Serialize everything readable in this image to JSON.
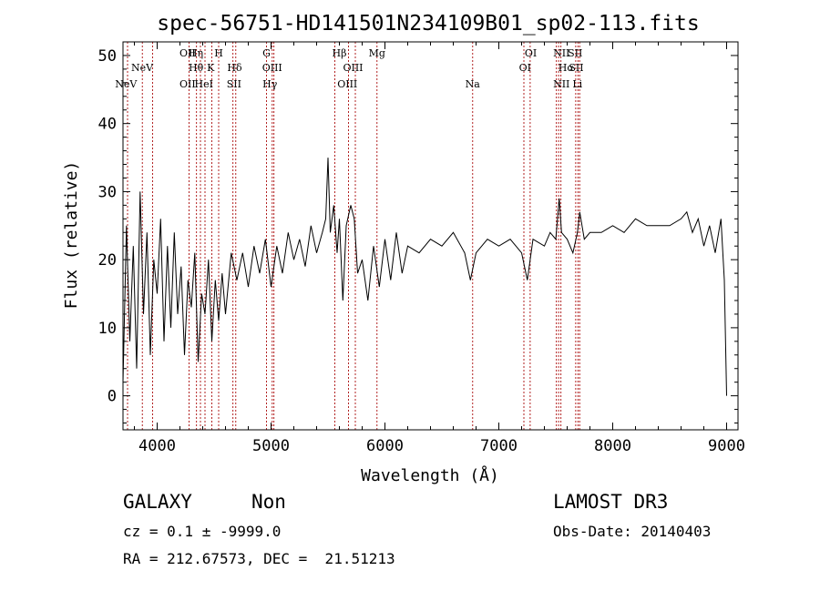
{
  "chart_data": {
    "type": "line",
    "title": "spec-56751-HD141501N234109B01_sp02-113.fits",
    "xlabel": "Wavelength (Å)",
    "ylabel": "Flux (relative)",
    "xlim": [
      3700,
      9100
    ],
    "ylim": [
      -5,
      52
    ],
    "xticks": [
      4000,
      5000,
      6000,
      7000,
      8000,
      9000
    ],
    "yticks": [
      0,
      10,
      20,
      30,
      40,
      50
    ],
    "xtick_labels": [
      "4000",
      "5000",
      "6000",
      "7000",
      "8000",
      "9000"
    ],
    "ytick_labels": [
      "0",
      "10",
      "20",
      "30",
      "40",
      "50"
    ],
    "grid": false,
    "line_color": "#000000",
    "marker_color": "#b22222",
    "series": [
      {
        "name": "flux",
        "x": [
          3700,
          3730,
          3760,
          3790,
          3820,
          3850,
          3880,
          3910,
          3940,
          3970,
          4000,
          4030,
          4060,
          4090,
          4120,
          4150,
          4180,
          4210,
          4240,
          4270,
          4300,
          4330,
          4360,
          4390,
          4420,
          4450,
          4480,
          4510,
          4540,
          4570,
          4600,
          4650,
          4700,
          4750,
          4800,
          4850,
          4900,
          4950,
          5000,
          5050,
          5100,
          5150,
          5200,
          5250,
          5300,
          5350,
          5400,
          5450,
          5480,
          5500,
          5520,
          5550,
          5580,
          5600,
          5630,
          5660,
          5700,
          5730,
          5760,
          5800,
          5850,
          5900,
          5950,
          6000,
          6050,
          6100,
          6150,
          6200,
          6300,
          6400,
          6500,
          6600,
          6700,
          6750,
          6800,
          6900,
          7000,
          7100,
          7200,
          7250,
          7300,
          7400,
          7450,
          7500,
          7530,
          7550,
          7600,
          7650,
          7690,
          7710,
          7750,
          7800,
          7900,
          8000,
          8100,
          8200,
          8300,
          8400,
          8500,
          8600,
          8650,
          8700,
          8750,
          8800,
          8850,
          8900,
          8950,
          8980,
          9000
        ],
        "y": [
          2,
          25,
          8,
          22,
          4,
          30,
          12,
          24,
          6,
          20,
          15,
          26,
          8,
          22,
          10,
          24,
          12,
          19,
          6,
          17,
          13,
          21,
          5,
          15,
          12,
          20,
          8,
          17,
          11,
          18,
          12,
          21,
          17,
          21,
          16,
          22,
          18,
          23,
          16,
          22,
          18,
          24,
          20,
          23,
          19,
          25,
          21,
          24,
          26,
          35,
          24,
          28,
          21,
          26,
          14,
          25,
          28,
          26,
          18,
          20,
          14,
          22,
          16,
          23,
          17,
          24,
          18,
          22,
          21,
          23,
          22,
          24,
          21,
          17,
          21,
          23,
          22,
          23,
          21,
          17,
          23,
          22,
          24,
          23,
          29,
          24,
          23,
          21,
          24,
          27,
          23,
          24,
          24,
          25,
          24,
          26,
          25,
          25,
          25,
          26,
          27,
          24,
          26,
          22,
          25,
          21,
          26,
          17,
          0
        ]
      }
    ],
    "emission_lines": [
      {
        "label": "NeV",
        "x": 3726,
        "row": 2
      },
      {
        "label": "NeV",
        "x": 3868,
        "row": 1
      },
      {
        "label": "OII",
        "x": 4267,
        "row": 0
      },
      {
        "label": "OII",
        "x": 4267,
        "row": 2
      },
      {
        "label": "Hη",
        "x": 4340,
        "row": 0
      },
      {
        "label": "Hθ",
        "x": 4341,
        "row": 1
      },
      {
        "label": "HeI",
        "x": 4410,
        "row": 2
      },
      {
        "label": "H",
        "x": 4540,
        "row": 0
      },
      {
        "label": "K",
        "x": 4470,
        "row": 1
      },
      {
        "label": "Hδ",
        "x": 4680,
        "row": 1
      },
      {
        "label": "SII",
        "x": 4675,
        "row": 2
      },
      {
        "label": "G",
        "x": 4960,
        "row": 0
      },
      {
        "label": "OIII",
        "x": 5010,
        "row": 1
      },
      {
        "label": "Hγ",
        "x": 4990,
        "row": 2
      },
      {
        "label": "Hβ",
        "x": 5600,
        "row": 0
      },
      {
        "label": "OIII",
        "x": 5720,
        "row": 1
      },
      {
        "label": "OIII",
        "x": 5670,
        "row": 2
      },
      {
        "label": "Mg",
        "x": 5930,
        "row": 0
      },
      {
        "label": "Na",
        "x": 6770,
        "row": 2
      },
      {
        "label": "OI",
        "x": 7280,
        "row": 0
      },
      {
        "label": "OI",
        "x": 7230,
        "row": 1
      },
      {
        "label": "NII",
        "x": 7550,
        "row": 0
      },
      {
        "label": "Hα",
        "x": 7590,
        "row": 1
      },
      {
        "label": "NII",
        "x": 7550,
        "row": 2
      },
      {
        "label": "SII",
        "x": 7670,
        "row": 0
      },
      {
        "label": "SII",
        "x": 7680,
        "row": 1
      },
      {
        "label": "Li",
        "x": 7690,
        "row": 2
      }
    ],
    "marker_lines_x": [
      3740,
      3870,
      3960,
      4280,
      4345,
      4380,
      4420,
      4480,
      4540,
      4665,
      4690,
      4960,
      5010,
      5025,
      5560,
      5680,
      5740,
      5930,
      6770,
      7220,
      7275,
      7505,
      7525,
      7545,
      7675,
      7695,
      7710
    ]
  },
  "info": {
    "object_class": "GALAXY",
    "subclass": "Non",
    "survey": "LAMOST DR3",
    "redshift_line": "cz = 0.1 ± -9999.0",
    "obs_date_line": "Obs-Date: 20140403",
    "coords_line": "RA = 212.67573, DEC =  21.51213"
  }
}
